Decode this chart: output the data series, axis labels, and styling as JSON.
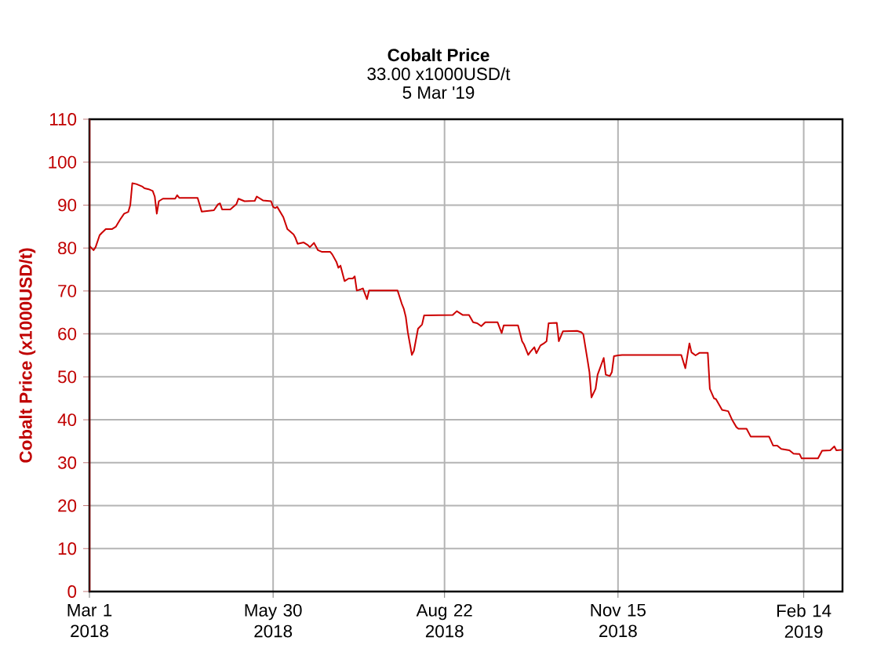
{
  "chart_data": {
    "type": "line",
    "title": "Cobalt Price",
    "subtitle": "33.00 x1000USD/t",
    "annotations": [
      "5 Mar '19"
    ],
    "ylabel": "Cobalt Price (x1000USD/t)",
    "x": [
      "2018-03-01",
      "2018-03-03",
      "2018-03-04",
      "2018-03-06",
      "2018-03-07",
      "2018-03-09",
      "2018-03-12",
      "2018-03-14",
      "2018-03-16",
      "2018-03-18",
      "2018-03-20",
      "2018-03-21",
      "2018-03-22",
      "2018-03-24",
      "2018-03-27",
      "2018-03-28",
      "2018-03-30",
      "2018-04-01",
      "2018-04-02",
      "2018-04-03",
      "2018-04-04",
      "2018-04-06",
      "2018-04-12",
      "2018-04-13",
      "2018-04-14",
      "2018-04-23",
      "2018-04-25",
      "2018-05-01",
      "2018-05-03",
      "2018-05-04",
      "2018-05-05",
      "2018-05-09",
      "2018-05-12",
      "2018-05-13",
      "2018-05-16",
      "2018-05-21",
      "2018-05-22",
      "2018-05-25",
      "2018-05-29",
      "2018-05-30",
      "2018-05-31",
      "2018-06-01",
      "2018-06-04",
      "2018-06-06",
      "2018-06-09",
      "2018-06-10",
      "2018-06-11",
      "2018-06-14",
      "2018-06-16",
      "2018-06-17",
      "2018-06-19",
      "2018-06-21",
      "2018-06-23",
      "2018-06-27",
      "2018-06-28",
      "2018-06-30",
      "2018-07-01",
      "2018-07-02",
      "2018-07-04",
      "2018-07-06",
      "2018-07-08",
      "2018-07-09",
      "2018-07-10",
      "2018-07-12",
      "2018-07-13",
      "2018-07-15",
      "2018-07-16",
      "2018-07-30",
      "2018-08-01",
      "2018-08-02",
      "2018-08-03",
      "2018-08-04",
      "2018-08-06",
      "2018-08-07",
      "2018-08-09",
      "2018-08-11",
      "2018-08-12",
      "2018-08-26",
      "2018-08-28",
      "2018-08-30",
      "2018-08-31",
      "2018-09-03",
      "2018-09-05",
      "2018-09-07",
      "2018-09-09",
      "2018-09-11",
      "2018-09-17",
      "2018-09-19",
      "2018-09-20",
      "2018-09-27",
      "2018-09-29",
      "2018-09-30",
      "2018-10-02",
      "2018-10-03",
      "2018-10-05",
      "2018-10-06",
      "2018-10-08",
      "2018-10-10",
      "2018-10-11",
      "2018-10-12",
      "2018-10-16",
      "2018-10-17",
      "2018-10-19",
      "2018-10-26",
      "2018-10-28",
      "2018-10-29",
      "2018-10-31",
      "2018-11-01",
      "2018-11-02",
      "2018-11-04",
      "2018-11-05",
      "2018-11-08",
      "2018-11-09",
      "2018-11-11",
      "2018-11-12",
      "2018-11-13",
      "2018-11-15",
      "2018-11-17",
      "2018-12-16",
      "2018-12-18",
      "2018-12-20",
      "2018-12-21",
      "2018-12-23",
      "2018-12-25",
      "2018-12-29",
      "2018-12-30",
      "2019-01-01",
      "2019-01-02",
      "2019-01-05",
      "2019-01-08",
      "2019-01-10",
      "2019-01-12",
      "2019-01-13",
      "2019-01-17",
      "2019-01-19",
      "2019-01-28",
      "2019-01-30",
      "2019-02-01",
      "2019-02-03",
      "2019-02-07",
      "2019-02-09",
      "2019-02-12",
      "2019-02-13",
      "2019-02-21",
      "2019-02-23",
      "2019-02-27",
      "2019-03-01",
      "2019-03-02",
      "2019-03-05"
    ],
    "values": [
      80.5,
      79.5,
      80.2,
      83,
      83.5,
      84.4,
      84.4,
      85,
      86.6,
      88,
      88.4,
      90,
      95.1,
      94.9,
      94.3,
      93.9,
      93.7,
      93.3,
      92,
      88,
      90.9,
      91.5,
      91.5,
      92.3,
      91.7,
      91.7,
      88.5,
      88.8,
      90.2,
      90.4,
      89,
      89,
      90.2,
      91.5,
      90.9,
      91,
      92,
      91.1,
      90.9,
      89.6,
      89.3,
      89.6,
      87.2,
      84.4,
      83.2,
      82.3,
      81,
      81.3,
      80.7,
      80.2,
      81.2,
      79.5,
      79.1,
      79.1,
      78.5,
      76.8,
      75.4,
      75.9,
      72.3,
      72.9,
      72.9,
      73.4,
      70.1,
      70.4,
      70.6,
      68.1,
      70.1,
      70.1,
      67.1,
      65.9,
      64,
      60.4,
      55.1,
      56.1,
      61.2,
      62.2,
      64.3,
      64.4,
      65.3,
      64.7,
      64.4,
      64.4,
      62.7,
      62.5,
      61.8,
      62.7,
      62.7,
      60.2,
      62,
      62,
      58.3,
      57.5,
      55.1,
      55.8,
      56.9,
      55.5,
      57.3,
      57.9,
      58.3,
      62.5,
      62.6,
      58.3,
      60.6,
      60.7,
      60.4,
      59.9,
      54.1,
      51.1,
      45.2,
      47.2,
      50.5,
      54.4,
      50.5,
      50.2,
      51.1,
      54.8,
      55,
      55.1,
      55.1,
      52,
      57.8,
      55.7,
      55,
      55.6,
      55.6,
      47.2,
      45,
      44.8,
      42.3,
      42,
      39.9,
      38.3,
      37.9,
      37.9,
      36.1,
      36.1,
      34,
      34,
      33.2,
      32.9,
      32.1,
      32,
      31,
      31,
      32.8,
      32.9,
      33.8,
      32.9,
      33
    ],
    "color": "#cc0000",
    "marker": "none",
    "line_style": "solid",
    "grid": true,
    "xlim": [
      "2018-03-01",
      "2019-03-05"
    ],
    "xticks": [
      {
        "value": "2018-03-01",
        "label": "Mar 1 2018"
      },
      {
        "value": "2018-05-30",
        "label": "May 30 2018"
      },
      {
        "value": "2018-08-22",
        "label": "Aug 22 2018"
      },
      {
        "value": "2018-11-15",
        "label": "Nov 15 2018"
      },
      {
        "value": "2019-02-14",
        "label": "Feb 14 2019"
      }
    ],
    "ylim": [
      0,
      110
    ],
    "yticks": [
      0,
      10,
      20,
      30,
      40,
      50,
      60,
      70,
      80,
      90,
      100,
      110
    ]
  }
}
